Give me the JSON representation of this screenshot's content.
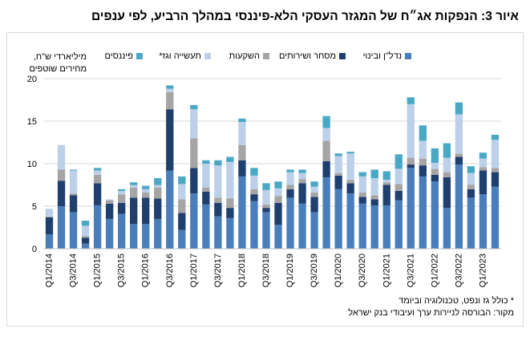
{
  "title": "איור 3: הנפקות אג״ח של המגזר העסקי הלא-פיננסי במהלך הרביע, לפי ענפים",
  "footnote": "* כולל גז ונפט, טכנולוגיה וביומד",
  "source": "מקור: הבורסה לניירות ערך ועיבודי בנק ישראל",
  "chart_data": {
    "type": "bar",
    "stacked": true,
    "ylabel": "מיליארדי ש\"ח, מחירים שוטפים",
    "ylim": [
      0,
      20
    ],
    "yticks": [
      0,
      5,
      10,
      15,
      20
    ],
    "grid": true,
    "legend_position": "top",
    "categories": [
      "Q1/2014",
      "Q2/2014",
      "Q3/2014",
      "Q4/2014",
      "Q1/2015",
      "Q2/2015",
      "Q3/2015",
      "Q4/2015",
      "Q1/2016",
      "Q2/2016",
      "Q3/2016",
      "Q4/2016",
      "Q1/2017",
      "Q2/2017",
      "Q3/2017",
      "Q4/2017",
      "Q1/2018",
      "Q2/2018",
      "Q3/2018",
      "Q4/2018",
      "Q1/2019",
      "Q2/2019",
      "Q3/2019",
      "Q4/2019",
      "Q1/2020",
      "Q2/2020",
      "Q3/2020",
      "Q4/2020",
      "Q1/2021",
      "Q2/2021",
      "Q3/2021",
      "Q4/2021",
      "Q1/2022",
      "Q2/2022",
      "Q3/2022",
      "Q4/2022",
      "Q1/2023",
      "Q2/2023"
    ],
    "xtick_labels": [
      "Q1/2014",
      "",
      "Q3/2014",
      "",
      "Q1/2015",
      "",
      "Q3/2015",
      "",
      "Q1/2016",
      "",
      "Q3/2016",
      "",
      "Q1/2017",
      "",
      "Q3/2017",
      "",
      "Q1/2018",
      "",
      "Q3/2018",
      "",
      "Q1/2019",
      "",
      "Q3/2019",
      "",
      "Q1/2020",
      "",
      "Q3/2020",
      "",
      "Q1/2021",
      "",
      "Q3/2021",
      "",
      "Q1/2022",
      "",
      "Q3/2022",
      "",
      "Q1/2023",
      ""
    ],
    "series": [
      {
        "name": "נדל\"ן ובינוי",
        "color": "#4a7ebb",
        "values": [
          1.7,
          5.0,
          4.3,
          0.6,
          5.1,
          3.5,
          4.1,
          2.9,
          2.9,
          3.5,
          9.2,
          2.2,
          6.5,
          5.2,
          3.8,
          3.6,
          8.5,
          5.6,
          4.3,
          2.8,
          6.0,
          5.3,
          4.3,
          8.4,
          7.0,
          6.5,
          5.3,
          5.1,
          5.1,
          5.7,
          9.5,
          8.5,
          7.9,
          4.8,
          9.9,
          6.0,
          6.4,
          7.3
        ]
      },
      {
        "name": "מסחר ושירותים",
        "color": "#1f3f6e",
        "values": [
          2.0,
          3.0,
          2.0,
          0.7,
          2.6,
          1.8,
          1.3,
          3.1,
          3.1,
          2.4,
          7.2,
          2.0,
          3.0,
          1.5,
          1.6,
          1.2,
          1.9,
          0.8,
          0.5,
          2.6,
          1.0,
          2.4,
          1.8,
          1.9,
          1.6,
          1.2,
          0.8,
          0.7,
          2.4,
          1.1,
          0.4,
          1.3,
          0.8,
          3.6,
          0.9,
          1.0,
          2.8,
          1.7
        ]
      },
      {
        "name": "השקעות",
        "color": "#a5a5a5",
        "values": [
          0.1,
          1.3,
          0.2,
          0.2,
          1.0,
          0.4,
          1.0,
          1.2,
          0.6,
          1.3,
          2.0,
          1.6,
          3.5,
          0.5,
          0.6,
          1.1,
          1.8,
          0.6,
          0.4,
          0.8,
          0.5,
          0.5,
          0.5,
          2.4,
          0.3,
          0.4,
          0.5,
          0.5,
          0.3,
          0.8,
          0.8,
          0.8,
          0.7,
          0.6,
          0.4,
          0.5,
          0.4,
          0.5
        ]
      },
      {
        "name": "תעשייה וגז*",
        "color": "#bcd0ea",
        "values": [
          0.9,
          2.9,
          2.7,
          1.2,
          0.5,
          0.1,
          0.4,
          0.3,
          0.4,
          0.3,
          0.4,
          1.8,
          3.4,
          2.8,
          3.8,
          4.3,
          2.7,
          1.6,
          1.7,
          0.9,
          1.5,
          0.7,
          0.7,
          1.5,
          2.0,
          3.1,
          1.9,
          2.0,
          0.3,
          1.8,
          6.3,
          2.1,
          0.7,
          1.7,
          4.6,
          1.4,
          1.0,
          3.3
        ]
      },
      {
        "name": "פיננסים",
        "color": "#4aa8c4",
        "values": [
          0.0,
          0.0,
          0.1,
          0.6,
          0.3,
          0.0,
          0.2,
          0.3,
          0.4,
          0.8,
          0.4,
          0.9,
          0.5,
          0.4,
          0.6,
          0.6,
          0.4,
          0.9,
          0.8,
          0.8,
          0.3,
          0.4,
          0.6,
          1.4,
          0.3,
          0.2,
          0.5,
          1.0,
          1.0,
          1.7,
          0.8,
          1.8,
          1.7,
          1.7,
          1.4,
          0.8,
          0.7,
          0.6
        ]
      }
    ]
  }
}
